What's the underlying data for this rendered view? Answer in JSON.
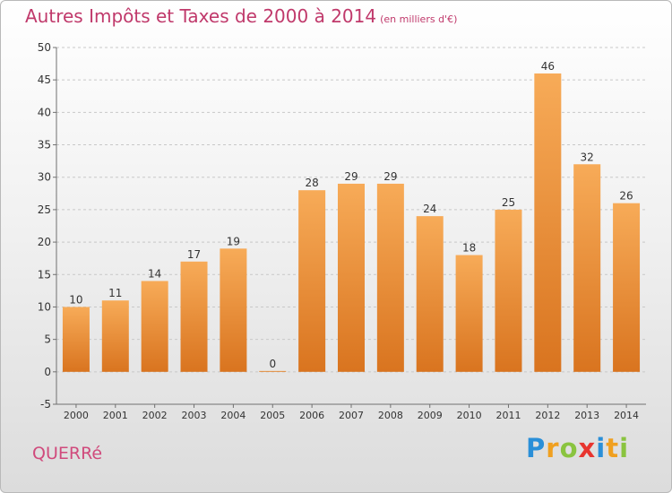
{
  "header": {
    "title": "Autres Impôts et Taxes de 2000 à 2014",
    "subtitle": "(en milliers d'€)"
  },
  "footer": {
    "commune": "QUERRé",
    "logo_letters": [
      "P",
      "r",
      "o",
      "x",
      "i",
      "t",
      "i"
    ],
    "logo_colors": [
      "#2a8fd8",
      "#f0a020",
      "#8ac43f",
      "#e8352f",
      "#2a8fd8",
      "#f0a020",
      "#8ac43f"
    ]
  },
  "colors": {
    "bar_light": "#f7ab58",
    "bar_dark": "#d9741f",
    "grid": "#c8c8c8",
    "axis": "#707070",
    "text": "#333333",
    "title": "#c0396b"
  },
  "chart_data": {
    "type": "bar",
    "categories": [
      "2000",
      "2001",
      "2002",
      "2003",
      "2004",
      "2005",
      "2006",
      "2007",
      "2008",
      "2009",
      "2010",
      "2011",
      "2012",
      "2013",
      "2014"
    ],
    "values": [
      10,
      11,
      14,
      17,
      19,
      0,
      28,
      29,
      29,
      24,
      18,
      25,
      46,
      32,
      26
    ],
    "labels": [
      "10",
      "11",
      "14",
      "17",
      "19",
      "0",
      "28",
      "29",
      "29",
      "24",
      "18",
      "25",
      "46",
      "32",
      "26"
    ],
    "yticks": [
      -5,
      0,
      5,
      10,
      15,
      20,
      25,
      30,
      35,
      40,
      45,
      50
    ],
    "ylim": [
      -5,
      50
    ],
    "grid": true,
    "xlabel": "",
    "ylabel": ""
  }
}
